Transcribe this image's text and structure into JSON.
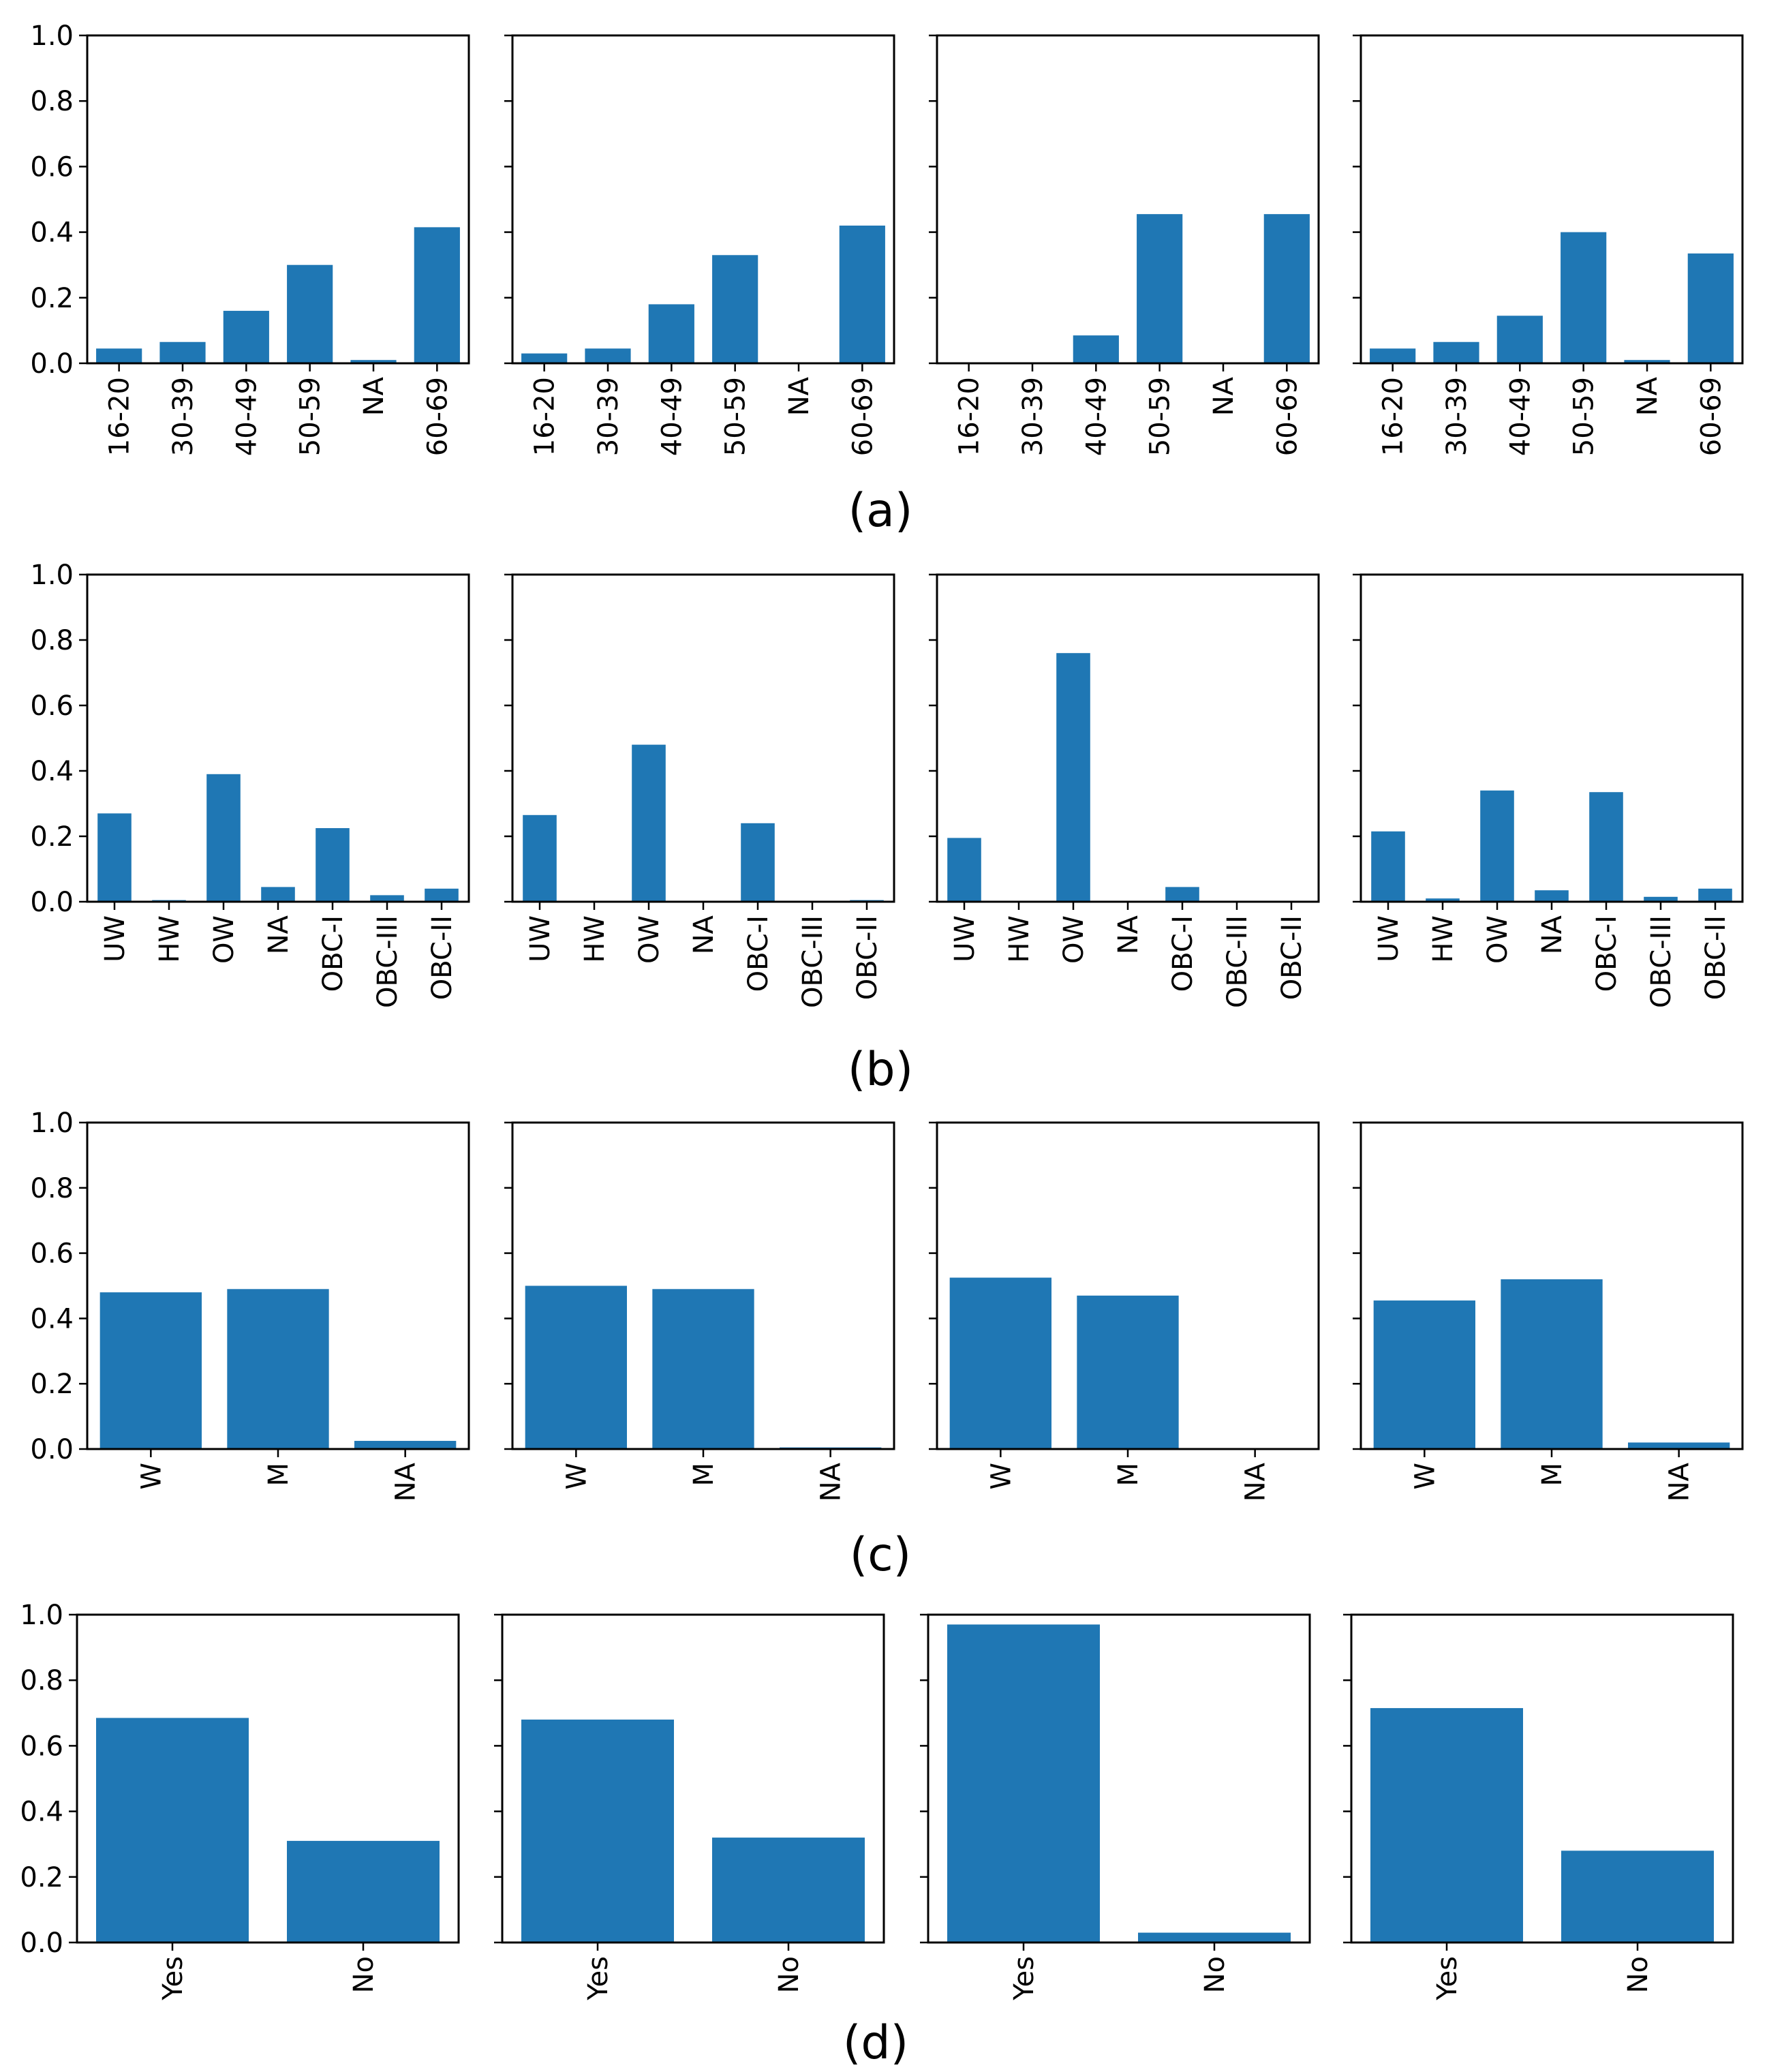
{
  "colors": {
    "bar": "#1f77b4",
    "axis": "#000000",
    "background": "#ffffff"
  },
  "y_ticks": [
    "0.0",
    "0.2",
    "0.4",
    "0.6",
    "0.8",
    "1.0"
  ],
  "row_labels": [
    "(a)",
    "(b)",
    "(c)",
    "(d)"
  ],
  "chart_data": [
    {
      "type": "bar",
      "row": "(a)",
      "panel": 1,
      "categories": [
        "16-20",
        "30-39",
        "40-49",
        "50-59",
        "NA",
        "60-69"
      ],
      "values": [
        0.045,
        0.065,
        0.16,
        0.3,
        0.01,
        0.415
      ],
      "ylim": [
        0,
        1
      ],
      "title": "",
      "xlabel": "",
      "ylabel": ""
    },
    {
      "type": "bar",
      "row": "(a)",
      "panel": 2,
      "categories": [
        "16-20",
        "30-39",
        "40-49",
        "50-59",
        "NA",
        "60-69"
      ],
      "values": [
        0.03,
        0.045,
        0.18,
        0.33,
        0.0,
        0.42
      ],
      "ylim": [
        0,
        1
      ],
      "title": "",
      "xlabel": "",
      "ylabel": ""
    },
    {
      "type": "bar",
      "row": "(a)",
      "panel": 3,
      "categories": [
        "16-20",
        "30-39",
        "40-49",
        "50-59",
        "NA",
        "60-69"
      ],
      "values": [
        0.0,
        0.0,
        0.085,
        0.455,
        0.0,
        0.455
      ],
      "ylim": [
        0,
        1
      ],
      "title": "",
      "xlabel": "",
      "ylabel": ""
    },
    {
      "type": "bar",
      "row": "(a)",
      "panel": 4,
      "categories": [
        "16-20",
        "30-39",
        "40-49",
        "50-59",
        "NA",
        "60-69"
      ],
      "values": [
        0.045,
        0.065,
        0.145,
        0.4,
        0.01,
        0.335
      ],
      "ylim": [
        0,
        1
      ],
      "title": "",
      "xlabel": "",
      "ylabel": ""
    },
    {
      "type": "bar",
      "row": "(b)",
      "panel": 1,
      "categories": [
        "UW",
        "HW",
        "OW",
        "NA",
        "OBC-I",
        "OBC-III",
        "OBC-II"
      ],
      "values": [
        0.27,
        0.005,
        0.39,
        0.045,
        0.225,
        0.02,
        0.04
      ],
      "ylim": [
        0,
        1
      ],
      "title": "",
      "xlabel": "",
      "ylabel": ""
    },
    {
      "type": "bar",
      "row": "(b)",
      "panel": 2,
      "categories": [
        "UW",
        "HW",
        "OW",
        "NA",
        "OBC-I",
        "OBC-III",
        "OBC-II"
      ],
      "values": [
        0.265,
        0.0,
        0.48,
        0.0,
        0.24,
        0.0,
        0.005
      ],
      "ylim": [
        0,
        1
      ],
      "title": "",
      "xlabel": "",
      "ylabel": ""
    },
    {
      "type": "bar",
      "row": "(b)",
      "panel": 3,
      "categories": [
        "UW",
        "HW",
        "OW",
        "NA",
        "OBC-I",
        "OBC-III",
        "OBC-II"
      ],
      "values": [
        0.195,
        0.0,
        0.76,
        0.0,
        0.045,
        0.0,
        0.0
      ],
      "ylim": [
        0,
        1
      ],
      "title": "",
      "xlabel": "",
      "ylabel": ""
    },
    {
      "type": "bar",
      "row": "(b)",
      "panel": 4,
      "categories": [
        "UW",
        "HW",
        "OW",
        "NA",
        "OBC-I",
        "OBC-III",
        "OBC-II"
      ],
      "values": [
        0.215,
        0.01,
        0.34,
        0.035,
        0.335,
        0.015,
        0.04
      ],
      "ylim": [
        0,
        1
      ],
      "title": "",
      "xlabel": "",
      "ylabel": ""
    },
    {
      "type": "bar",
      "row": "(c)",
      "panel": 1,
      "categories": [
        "W",
        "M",
        "NA"
      ],
      "values": [
        0.48,
        0.49,
        0.025
      ],
      "ylim": [
        0,
        1
      ],
      "title": "",
      "xlabel": "",
      "ylabel": ""
    },
    {
      "type": "bar",
      "row": "(c)",
      "panel": 2,
      "categories": [
        "W",
        "M",
        "NA"
      ],
      "values": [
        0.5,
        0.49,
        0.005
      ],
      "ylim": [
        0,
        1
      ],
      "title": "",
      "xlabel": "",
      "ylabel": ""
    },
    {
      "type": "bar",
      "row": "(c)",
      "panel": 3,
      "categories": [
        "W",
        "M",
        "NA"
      ],
      "values": [
        0.525,
        0.47,
        0.0
      ],
      "ylim": [
        0,
        1
      ],
      "title": "",
      "xlabel": "",
      "ylabel": ""
    },
    {
      "type": "bar",
      "row": "(c)",
      "panel": 4,
      "categories": [
        "W",
        "M",
        "NA"
      ],
      "values": [
        0.455,
        0.52,
        0.02
      ],
      "ylim": [
        0,
        1
      ],
      "title": "",
      "xlabel": "",
      "ylabel": ""
    },
    {
      "type": "bar",
      "row": "(d)",
      "panel": 1,
      "categories": [
        "Yes",
        "No"
      ],
      "values": [
        0.685,
        0.31
      ],
      "ylim": [
        0,
        1
      ],
      "title": "",
      "xlabel": "",
      "ylabel": ""
    },
    {
      "type": "bar",
      "row": "(d)",
      "panel": 2,
      "categories": [
        "Yes",
        "No"
      ],
      "values": [
        0.68,
        0.32
      ],
      "ylim": [
        0,
        1
      ],
      "title": "",
      "xlabel": "",
      "ylabel": ""
    },
    {
      "type": "bar",
      "row": "(d)",
      "panel": 3,
      "categories": [
        "Yes",
        "No"
      ],
      "values": [
        0.97,
        0.03
      ],
      "ylim": [
        0,
        1
      ],
      "title": "",
      "xlabel": "",
      "ylabel": ""
    },
    {
      "type": "bar",
      "row": "(d)",
      "panel": 4,
      "categories": [
        "Yes",
        "No"
      ],
      "values": [
        0.715,
        0.28
      ],
      "ylim": [
        0,
        1
      ],
      "title": "",
      "xlabel": "",
      "ylabel": ""
    }
  ]
}
